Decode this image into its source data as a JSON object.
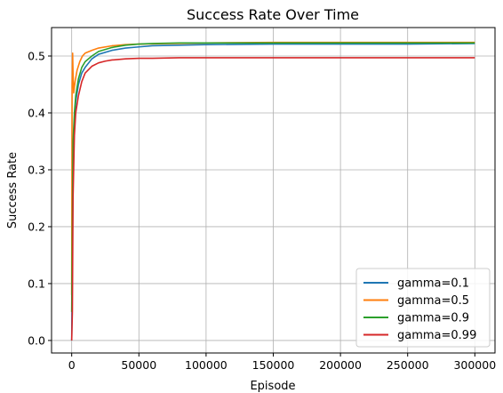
{
  "chart_data": {
    "type": "line",
    "title": "Success Rate Over Time",
    "xlabel": "Episode",
    "ylabel": "Success Rate",
    "xlim": [
      -15000,
      315000
    ],
    "ylim": [
      -0.022,
      0.55
    ],
    "xticks": [
      0,
      50000,
      100000,
      150000,
      200000,
      250000,
      300000
    ],
    "xtick_labels": [
      "0",
      "50000",
      "100000",
      "150000",
      "200000",
      "250000",
      "300000"
    ],
    "yticks": [
      0.0,
      0.1,
      0.2,
      0.3,
      0.4,
      0.5
    ],
    "ytick_labels": [
      "0.0",
      "0.1",
      "0.2",
      "0.3",
      "0.4",
      "0.5"
    ],
    "grid": true,
    "legend_position": "lower-right",
    "series": [
      {
        "name": "gamma=0.1",
        "color": "#1f77b4",
        "x": [
          0,
          1000,
          2000,
          3000,
          5000,
          7500,
          10000,
          15000,
          20000,
          30000,
          40000,
          50000,
          60000,
          80000,
          100000,
          150000,
          200000,
          250000,
          300000
        ],
        "y": [
          0.0,
          0.3,
          0.38,
          0.42,
          0.45,
          0.47,
          0.48,
          0.495,
          0.503,
          0.51,
          0.514,
          0.516,
          0.518,
          0.519,
          0.52,
          0.521,
          0.521,
          0.521,
          0.522
        ]
      },
      {
        "name": "gamma=0.5",
        "color": "#ff7f0e",
        "x": [
          0,
          300,
          700,
          1000,
          1500,
          2500,
          4000,
          6000,
          8000,
          10000,
          15000,
          20000,
          30000,
          40000,
          50000,
          100000,
          150000,
          200000,
          250000,
          300000
        ],
        "y": [
          0.08,
          0.45,
          0.505,
          0.47,
          0.435,
          0.455,
          0.475,
          0.49,
          0.5,
          0.505,
          0.51,
          0.514,
          0.518,
          0.52,
          0.521,
          0.523,
          0.524,
          0.524,
          0.524,
          0.524
        ]
      },
      {
        "name": "gamma=0.9",
        "color": "#2ca02c",
        "x": [
          0,
          1000,
          2000,
          3000,
          5000,
          7500,
          10000,
          15000,
          20000,
          30000,
          40000,
          50000,
          60000,
          80000,
          100000,
          150000,
          200000,
          250000,
          300000
        ],
        "y": [
          0.05,
          0.35,
          0.4,
          0.43,
          0.46,
          0.48,
          0.49,
          0.5,
          0.508,
          0.515,
          0.519,
          0.521,
          0.522,
          0.523,
          0.523,
          0.523,
          0.523,
          0.523,
          0.523
        ]
      },
      {
        "name": "gamma=0.99",
        "color": "#d62728",
        "x": [
          0,
          500,
          1000,
          2000,
          3000,
          5000,
          7500,
          10000,
          15000,
          20000,
          25000,
          30000,
          40000,
          50000,
          60000,
          80000,
          100000,
          150000,
          200000,
          250000,
          300000
        ],
        "y": [
          0.0,
          0.05,
          0.25,
          0.36,
          0.4,
          0.43,
          0.455,
          0.47,
          0.482,
          0.488,
          0.491,
          0.493,
          0.495,
          0.496,
          0.496,
          0.497,
          0.497,
          0.497,
          0.497,
          0.497,
          0.497
        ]
      }
    ]
  }
}
